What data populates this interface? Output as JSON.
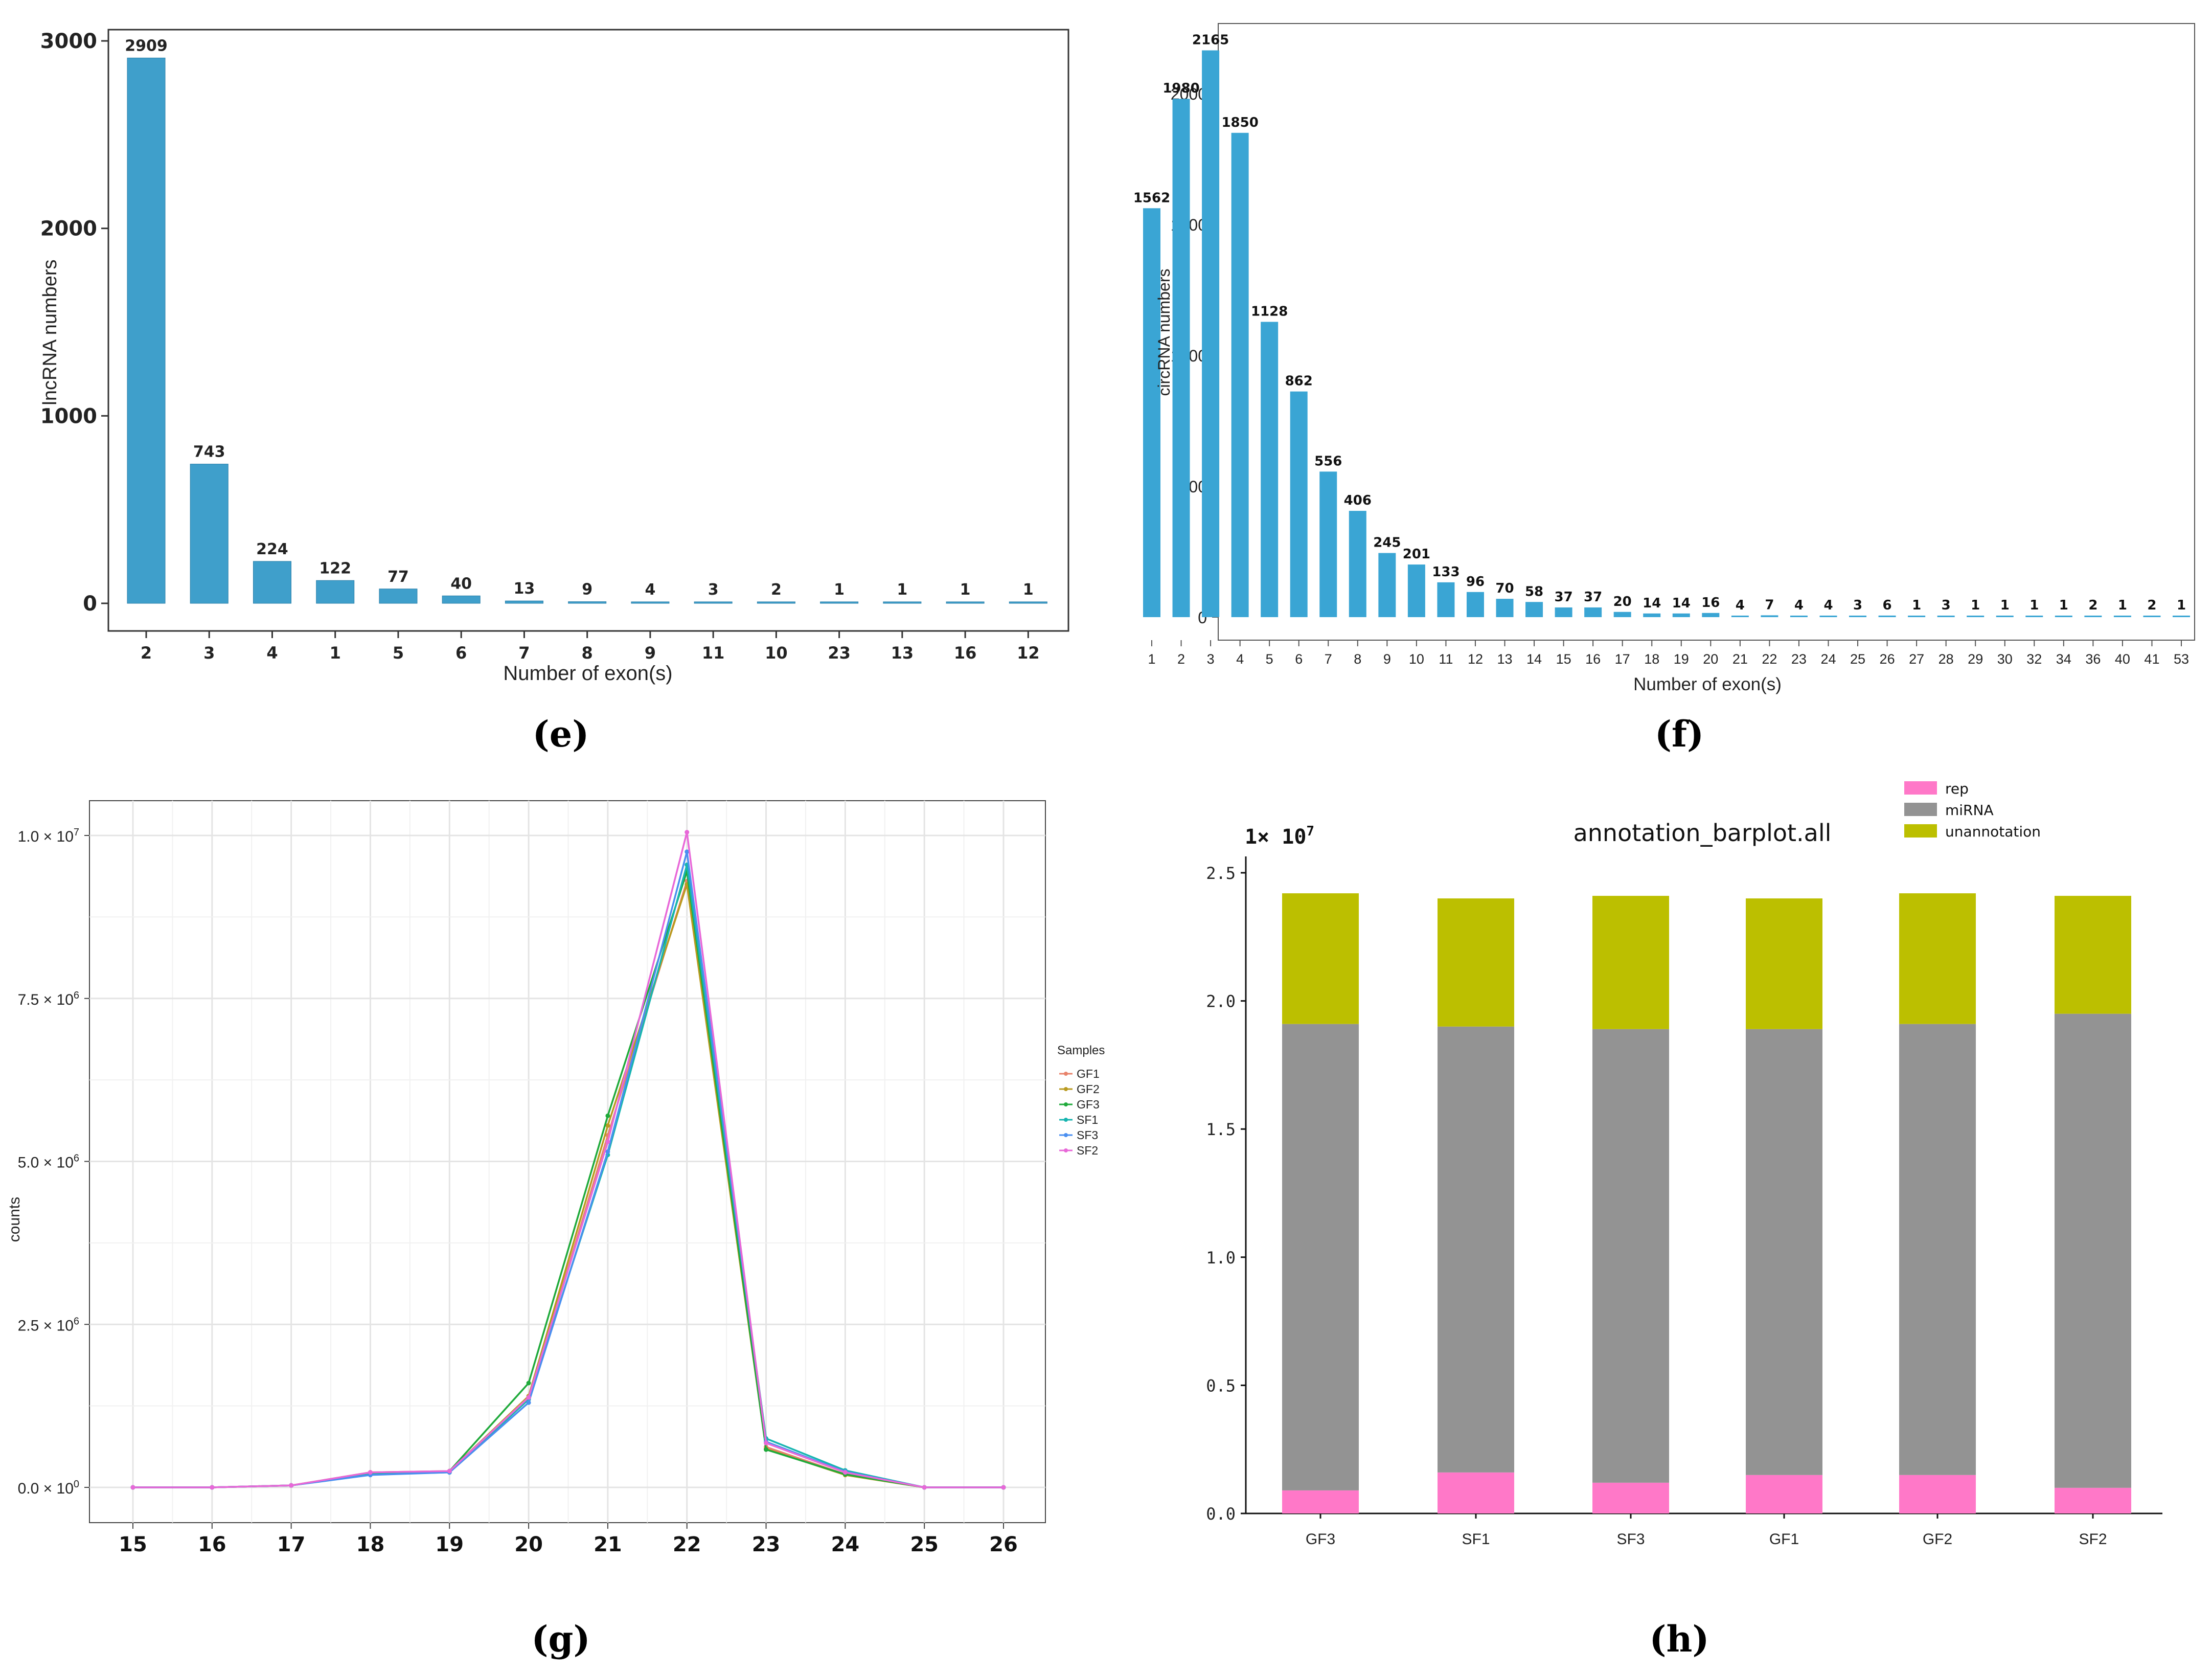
{
  "chart_data": [
    {
      "panel": "e",
      "type": "bar",
      "caption": "(e)",
      "title": "",
      "xlabel": "Number of exon(s)",
      "ylabel": "lncRNA numbers",
      "categories": [
        "2",
        "3",
        "4",
        "1",
        "5",
        "6",
        "7",
        "8",
        "9",
        "11",
        "10",
        "23",
        "13",
        "16",
        "12"
      ],
      "values": [
        2909,
        743,
        224,
        122,
        77,
        40,
        13,
        9,
        4,
        3,
        2,
        1,
        1,
        1,
        1
      ],
      "value_labels": [
        "2909",
        "743",
        "224",
        "122",
        "77",
        "40",
        "13",
        "9",
        "4",
        "3",
        "2",
        "1",
        "1",
        "1",
        "1"
      ],
      "yticks": [
        "0",
        "1000",
        "2000",
        "3000"
      ],
      "ylim": [
        0,
        3000
      ],
      "color": "#3f9fcb"
    },
    {
      "panel": "f",
      "type": "bar",
      "caption": "(f)",
      "title": "",
      "xlabel": "Number of exon(s)",
      "ylabel": "circRNA numbers",
      "categories": [
        "1",
        "2",
        "3",
        "4",
        "5",
        "6",
        "7",
        "8",
        "9",
        "10",
        "11",
        "12",
        "13",
        "14",
        "15",
        "16",
        "17",
        "18",
        "19",
        "20",
        "21",
        "22",
        "23",
        "24",
        "25",
        "26",
        "27",
        "28",
        "29",
        "30",
        "32",
        "34",
        "36",
        "40",
        "41",
        "53"
      ],
      "values": [
        1562,
        1980,
        2165,
        1850,
        1128,
        862,
        556,
        406,
        245,
        201,
        133,
        96,
        70,
        58,
        37,
        37,
        20,
        14,
        14,
        16,
        4,
        7,
        4,
        4,
        3,
        6,
        1,
        3,
        1,
        1,
        1,
        1,
        2,
        1,
        2,
        1
      ],
      "value_labels": [
        "1562",
        "1980",
        "2165",
        "1850",
        "1128",
        "862",
        "556",
        "406",
        "245",
        "201",
        "133",
        "96",
        "70",
        "58",
        "37",
        "37",
        "20",
        "14",
        "14",
        "16",
        "4",
        "7",
        "4",
        "4",
        "3",
        "6",
        "1",
        "3",
        "1",
        "1",
        "1",
        "1",
        "2",
        "1",
        "2",
        "1"
      ],
      "yticks": [
        "0",
        "500",
        "1000",
        "1500",
        "2000"
      ],
      "ylim": [
        0,
        2300
      ],
      "color": "#3aa5d4"
    },
    {
      "panel": "g",
      "type": "line",
      "caption": "(g)",
      "title": "",
      "xlabel": "",
      "ylabel": "counts",
      "x": [
        15,
        16,
        17,
        18,
        19,
        20,
        21,
        22,
        23,
        24,
        25,
        26
      ],
      "xtick_labels": [
        "15",
        "16",
        "17",
        "18",
        "19",
        "20",
        "21",
        "22",
        "23",
        "24",
        "25",
        "26"
      ],
      "yticks": [
        {
          "value": 0,
          "mant": "0.0",
          "exp": "0"
        },
        {
          "value": 2500000,
          "mant": "2.5",
          "exp": "6"
        },
        {
          "value": 5000000,
          "mant": "5.0",
          "exp": "6"
        },
        {
          "value": 7500000,
          "mant": "7.5",
          "exp": "6"
        },
        {
          "value": 10000000,
          "mant": "1.0",
          "exp": "7"
        }
      ],
      "ylim": [
        -350000,
        10500000
      ],
      "legend_title": "Samples",
      "legend_position": "top-right",
      "series": [
        {
          "name": "GF1",
          "color": "#e8836b",
          "values": [
            0,
            0,
            30000,
            220000,
            240000,
            1350000,
            5400000,
            9300000,
            620000,
            200000,
            0,
            0
          ]
        },
        {
          "name": "GF2",
          "color": "#b99a1f",
          "values": [
            0,
            0,
            30000,
            230000,
            250000,
            1400000,
            5550000,
            9250000,
            590000,
            190000,
            0,
            0
          ]
        },
        {
          "name": "GF3",
          "color": "#1faa3b",
          "values": [
            0,
            0,
            30000,
            200000,
            250000,
            1600000,
            5700000,
            9450000,
            580000,
            200000,
            0,
            0
          ]
        },
        {
          "name": "SF1",
          "color": "#17b5b0",
          "values": [
            0,
            0,
            30000,
            200000,
            230000,
            1350000,
            5100000,
            9550000,
            750000,
            260000,
            0,
            0
          ]
        },
        {
          "name": "SF3",
          "color": "#4a8ff0",
          "values": [
            0,
            0,
            30000,
            190000,
            230000,
            1300000,
            5150000,
            9750000,
            700000,
            240000,
            0,
            0
          ]
        },
        {
          "name": "SF2",
          "color": "#e868d8",
          "values": [
            0,
            0,
            30000,
            230000,
            250000,
            1380000,
            5300000,
            10050000,
            680000,
            230000,
            0,
            0
          ]
        }
      ]
    },
    {
      "panel": "h",
      "type": "bar",
      "stacked": true,
      "caption": "(h)",
      "title": "annotation_barplot.all",
      "multiplier": {
        "base": "1× 10",
        "exp": "7"
      },
      "xlabel": "",
      "ylabel": "",
      "categories": [
        "GF3",
        "SF1",
        "SF3",
        "GF1",
        "GF2",
        "SF2"
      ],
      "yticks": [
        "0.0",
        "0.5",
        "1.0",
        "1.5",
        "2.0",
        "2.5"
      ],
      "ylim": [
        0,
        2.55
      ],
      "legend_position": "top",
      "series": [
        {
          "name": "rep",
          "color": "#ff78c8",
          "values": [
            0.09,
            0.16,
            0.12,
            0.15,
            0.15,
            0.1
          ]
        },
        {
          "name": "miRNA",
          "color": "#939393",
          "values": [
            1.82,
            1.74,
            1.77,
            1.74,
            1.76,
            1.85
          ]
        },
        {
          "name": "unannotation",
          "color": "#bcbf00",
          "values": [
            0.51,
            0.5,
            0.52,
            0.51,
            0.51,
            0.46
          ]
        }
      ]
    }
  ]
}
